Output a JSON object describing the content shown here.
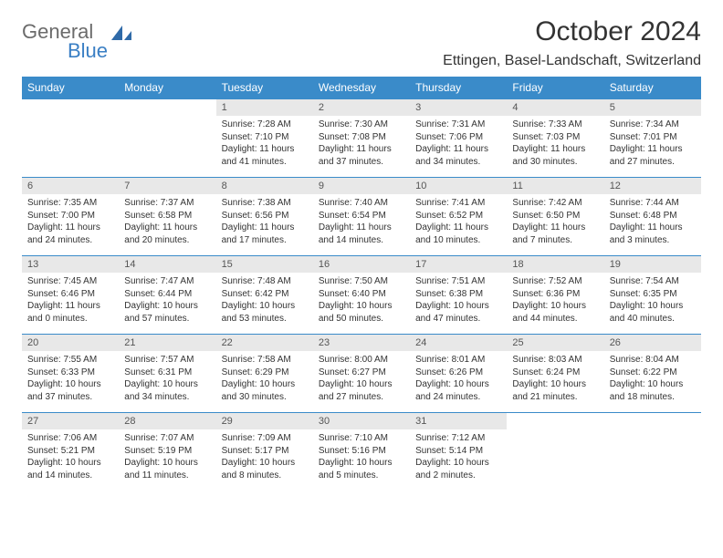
{
  "logo": {
    "word1": "General",
    "word2": "Blue"
  },
  "title": "October 2024",
  "location": "Ettingen, Basel-Landschaft, Switzerland",
  "colors": {
    "header_bg": "#3a8bc9",
    "header_text": "#ffffff",
    "daynum_bg": "#e8e8e8",
    "border": "#3a8bc9",
    "logo_gray": "#6b6b6b",
    "logo_blue": "#3a7fc4"
  },
  "weekdays": [
    "Sunday",
    "Monday",
    "Tuesday",
    "Wednesday",
    "Thursday",
    "Friday",
    "Saturday"
  ],
  "weeks": [
    [
      {
        "empty": true
      },
      {
        "empty": true
      },
      {
        "num": "1",
        "sunrise": "Sunrise: 7:28 AM",
        "sunset": "Sunset: 7:10 PM",
        "daylight": "Daylight: 11 hours and 41 minutes."
      },
      {
        "num": "2",
        "sunrise": "Sunrise: 7:30 AM",
        "sunset": "Sunset: 7:08 PM",
        "daylight": "Daylight: 11 hours and 37 minutes."
      },
      {
        "num": "3",
        "sunrise": "Sunrise: 7:31 AM",
        "sunset": "Sunset: 7:06 PM",
        "daylight": "Daylight: 11 hours and 34 minutes."
      },
      {
        "num": "4",
        "sunrise": "Sunrise: 7:33 AM",
        "sunset": "Sunset: 7:03 PM",
        "daylight": "Daylight: 11 hours and 30 minutes."
      },
      {
        "num": "5",
        "sunrise": "Sunrise: 7:34 AM",
        "sunset": "Sunset: 7:01 PM",
        "daylight": "Daylight: 11 hours and 27 minutes."
      }
    ],
    [
      {
        "num": "6",
        "sunrise": "Sunrise: 7:35 AM",
        "sunset": "Sunset: 7:00 PM",
        "daylight": "Daylight: 11 hours and 24 minutes."
      },
      {
        "num": "7",
        "sunrise": "Sunrise: 7:37 AM",
        "sunset": "Sunset: 6:58 PM",
        "daylight": "Daylight: 11 hours and 20 minutes."
      },
      {
        "num": "8",
        "sunrise": "Sunrise: 7:38 AM",
        "sunset": "Sunset: 6:56 PM",
        "daylight": "Daylight: 11 hours and 17 minutes."
      },
      {
        "num": "9",
        "sunrise": "Sunrise: 7:40 AM",
        "sunset": "Sunset: 6:54 PM",
        "daylight": "Daylight: 11 hours and 14 minutes."
      },
      {
        "num": "10",
        "sunrise": "Sunrise: 7:41 AM",
        "sunset": "Sunset: 6:52 PM",
        "daylight": "Daylight: 11 hours and 10 minutes."
      },
      {
        "num": "11",
        "sunrise": "Sunrise: 7:42 AM",
        "sunset": "Sunset: 6:50 PM",
        "daylight": "Daylight: 11 hours and 7 minutes."
      },
      {
        "num": "12",
        "sunrise": "Sunrise: 7:44 AM",
        "sunset": "Sunset: 6:48 PM",
        "daylight": "Daylight: 11 hours and 3 minutes."
      }
    ],
    [
      {
        "num": "13",
        "sunrise": "Sunrise: 7:45 AM",
        "sunset": "Sunset: 6:46 PM",
        "daylight": "Daylight: 11 hours and 0 minutes."
      },
      {
        "num": "14",
        "sunrise": "Sunrise: 7:47 AM",
        "sunset": "Sunset: 6:44 PM",
        "daylight": "Daylight: 10 hours and 57 minutes."
      },
      {
        "num": "15",
        "sunrise": "Sunrise: 7:48 AM",
        "sunset": "Sunset: 6:42 PM",
        "daylight": "Daylight: 10 hours and 53 minutes."
      },
      {
        "num": "16",
        "sunrise": "Sunrise: 7:50 AM",
        "sunset": "Sunset: 6:40 PM",
        "daylight": "Daylight: 10 hours and 50 minutes."
      },
      {
        "num": "17",
        "sunrise": "Sunrise: 7:51 AM",
        "sunset": "Sunset: 6:38 PM",
        "daylight": "Daylight: 10 hours and 47 minutes."
      },
      {
        "num": "18",
        "sunrise": "Sunrise: 7:52 AM",
        "sunset": "Sunset: 6:36 PM",
        "daylight": "Daylight: 10 hours and 44 minutes."
      },
      {
        "num": "19",
        "sunrise": "Sunrise: 7:54 AM",
        "sunset": "Sunset: 6:35 PM",
        "daylight": "Daylight: 10 hours and 40 minutes."
      }
    ],
    [
      {
        "num": "20",
        "sunrise": "Sunrise: 7:55 AM",
        "sunset": "Sunset: 6:33 PM",
        "daylight": "Daylight: 10 hours and 37 minutes."
      },
      {
        "num": "21",
        "sunrise": "Sunrise: 7:57 AM",
        "sunset": "Sunset: 6:31 PM",
        "daylight": "Daylight: 10 hours and 34 minutes."
      },
      {
        "num": "22",
        "sunrise": "Sunrise: 7:58 AM",
        "sunset": "Sunset: 6:29 PM",
        "daylight": "Daylight: 10 hours and 30 minutes."
      },
      {
        "num": "23",
        "sunrise": "Sunrise: 8:00 AM",
        "sunset": "Sunset: 6:27 PM",
        "daylight": "Daylight: 10 hours and 27 minutes."
      },
      {
        "num": "24",
        "sunrise": "Sunrise: 8:01 AM",
        "sunset": "Sunset: 6:26 PM",
        "daylight": "Daylight: 10 hours and 24 minutes."
      },
      {
        "num": "25",
        "sunrise": "Sunrise: 8:03 AM",
        "sunset": "Sunset: 6:24 PM",
        "daylight": "Daylight: 10 hours and 21 minutes."
      },
      {
        "num": "26",
        "sunrise": "Sunrise: 8:04 AM",
        "sunset": "Sunset: 6:22 PM",
        "daylight": "Daylight: 10 hours and 18 minutes."
      }
    ],
    [
      {
        "num": "27",
        "sunrise": "Sunrise: 7:06 AM",
        "sunset": "Sunset: 5:21 PM",
        "daylight": "Daylight: 10 hours and 14 minutes."
      },
      {
        "num": "28",
        "sunrise": "Sunrise: 7:07 AM",
        "sunset": "Sunset: 5:19 PM",
        "daylight": "Daylight: 10 hours and 11 minutes."
      },
      {
        "num": "29",
        "sunrise": "Sunrise: 7:09 AM",
        "sunset": "Sunset: 5:17 PM",
        "daylight": "Daylight: 10 hours and 8 minutes."
      },
      {
        "num": "30",
        "sunrise": "Sunrise: 7:10 AM",
        "sunset": "Sunset: 5:16 PM",
        "daylight": "Daylight: 10 hours and 5 minutes."
      },
      {
        "num": "31",
        "sunrise": "Sunrise: 7:12 AM",
        "sunset": "Sunset: 5:14 PM",
        "daylight": "Daylight: 10 hours and 2 minutes."
      },
      {
        "empty": true
      },
      {
        "empty": true
      }
    ]
  ]
}
